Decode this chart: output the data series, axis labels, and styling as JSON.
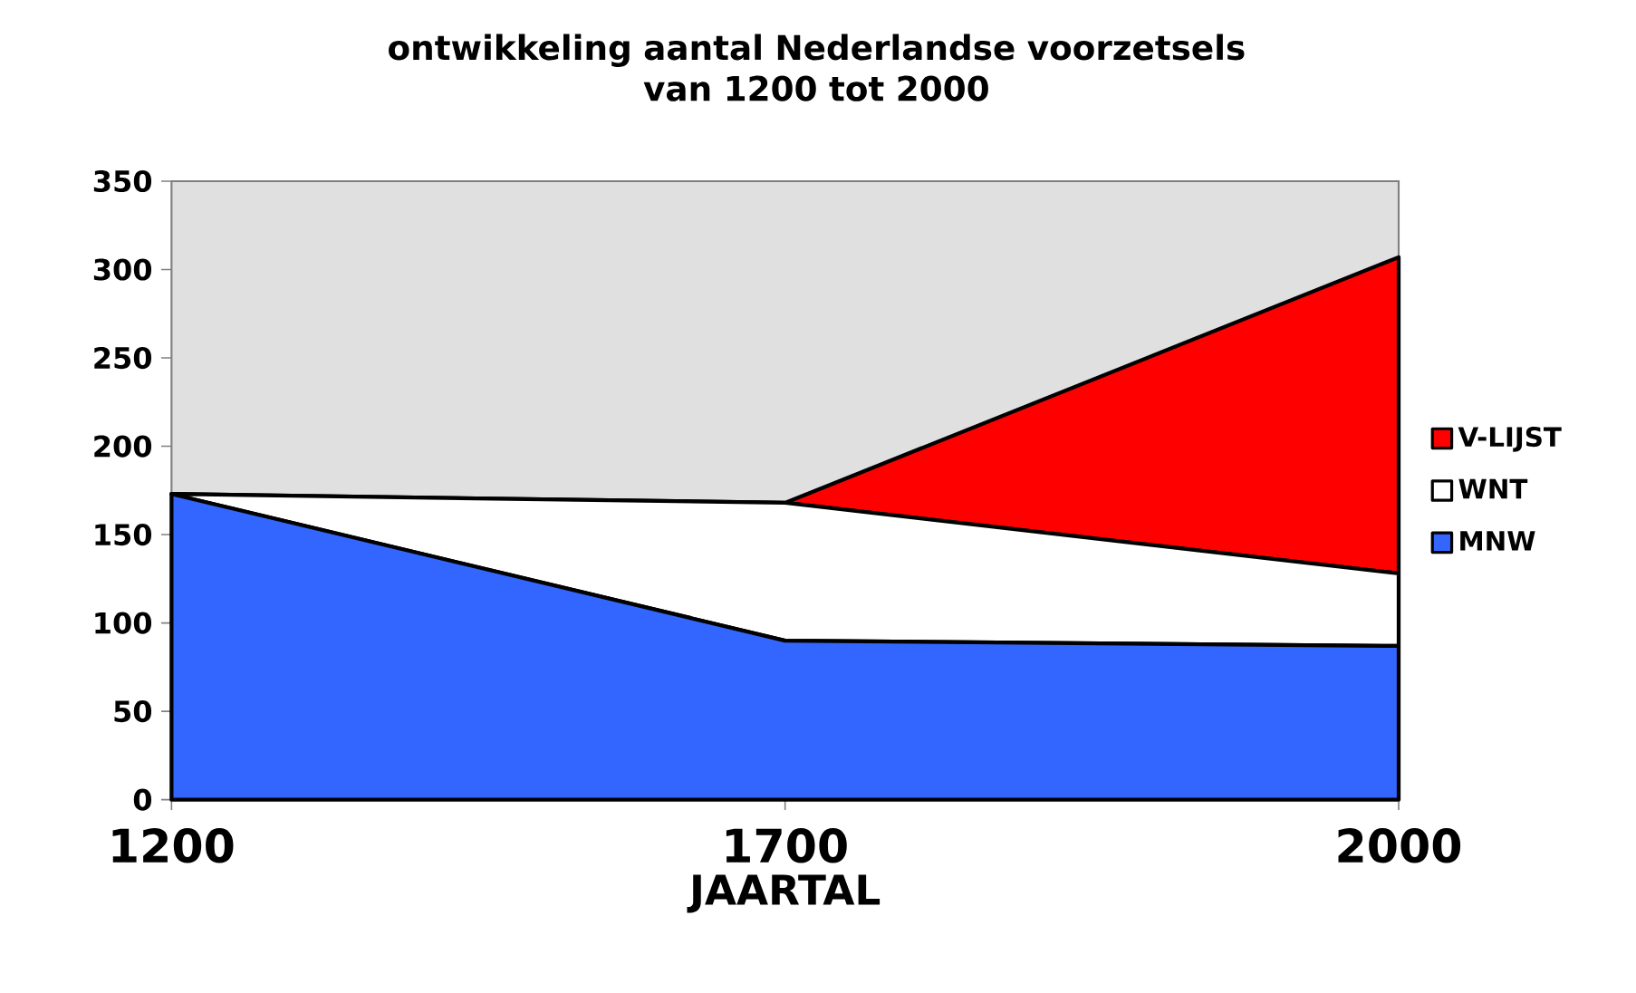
{
  "chart_data": {
    "type": "area",
    "title": "ontwikkeling aantal Nederlandse voorzetsels\nvan 1200 tot 2000",
    "xlabel": "JAARTAL",
    "categories": [
      "1200",
      "1700",
      "2000"
    ],
    "stacked": true,
    "ylim": [
      0,
      350
    ],
    "yticks": [
      0,
      50,
      100,
      150,
      200,
      250,
      300,
      350
    ],
    "legend": "right",
    "series": [
      {
        "name": "MNW",
        "color": "#3366ff",
        "values": [
          173,
          90,
          87
        ]
      },
      {
        "name": "WNT",
        "color": "#ffffff",
        "values": [
          0,
          78,
          41
        ]
      },
      {
        "name": "V-LIJST",
        "color": "#ff0000",
        "values": [
          0,
          0,
          179
        ]
      }
    ]
  }
}
